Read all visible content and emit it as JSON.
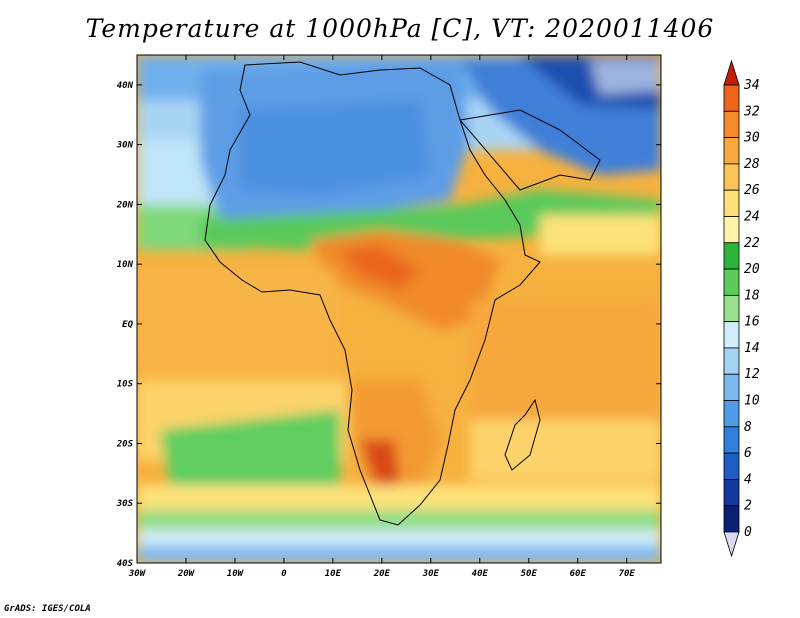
{
  "title": "Temperature at 1000hPa [C], VT: 2020011406",
  "credit": "GrADS: IGES/COLA",
  "map": {
    "lon_range": [
      -30,
      77
    ],
    "lat_range": [
      -40,
      45
    ],
    "x_ticks": [
      "30W",
      "20W",
      "10W",
      "0",
      "10E",
      "20E",
      "30E",
      "40E",
      "50E",
      "60E",
      "70E"
    ],
    "x_tick_values": [
      -30,
      -20,
      -10,
      0,
      10,
      20,
      30,
      40,
      50,
      60,
      70
    ],
    "y_ticks": [
      "40N",
      "30N",
      "20N",
      "10N",
      "EQ",
      "10S",
      "20S",
      "30S",
      "40S"
    ],
    "y_tick_values": [
      40,
      30,
      20,
      10,
      0,
      -10,
      -20,
      -30,
      -40
    ]
  },
  "colorbar": {
    "labels": [
      "34",
      "32",
      "30",
      "28",
      "26",
      "24",
      "22",
      "20",
      "18",
      "16",
      "14",
      "12",
      "10",
      "8",
      "6",
      "4",
      "2",
      "0"
    ],
    "colors": [
      "#0b1f73",
      "#14389e",
      "#1e5cc6",
      "#2f7fde",
      "#4e9ce8",
      "#7bb9ef",
      "#a6d2f4",
      "#d2ecfa",
      "#99e08c",
      "#5dcb5a",
      "#2eb33a",
      "#fff3a8",
      "#fde07a",
      "#fbc457",
      "#f8a83c",
      "#f48a28",
      "#ee6418",
      "#e23a0e",
      "#c81e08"
    ]
  }
}
